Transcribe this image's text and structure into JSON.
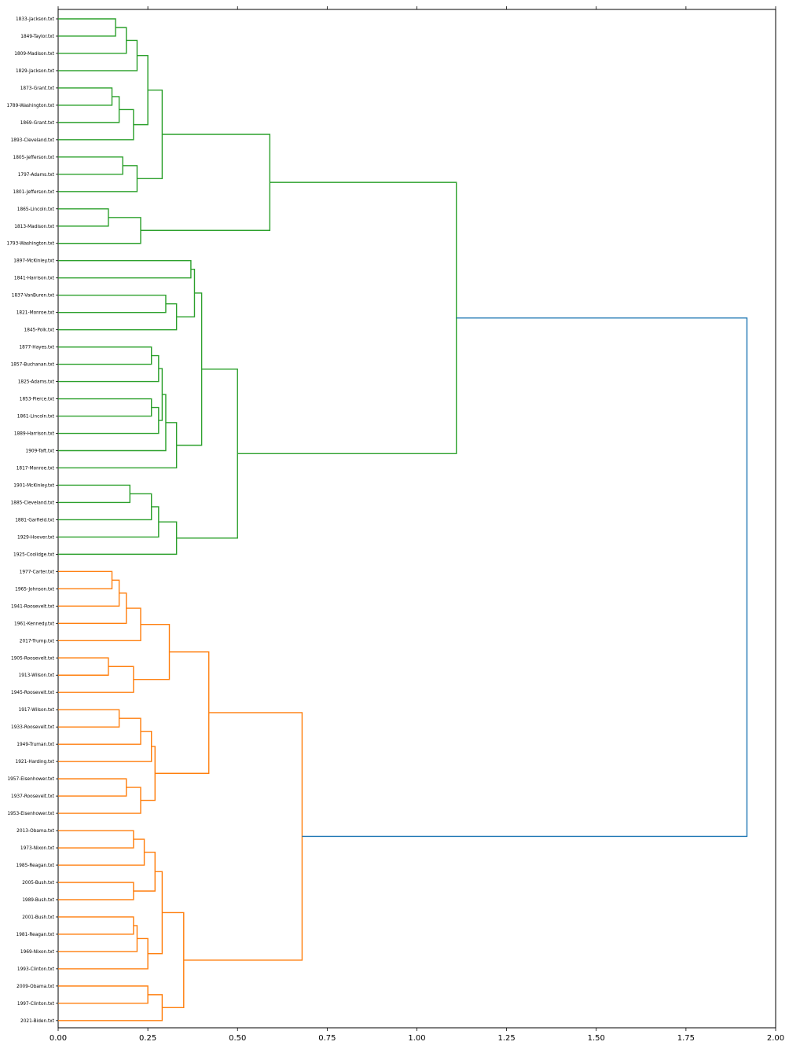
{
  "chart_data": {
    "type": "dendrogram",
    "orientation": "left",
    "xlim": [
      0.0,
      2.0
    ],
    "x_ticks": [
      "0.00",
      "0.25",
      "0.50",
      "0.75",
      "1.00",
      "1.25",
      "1.50",
      "1.75",
      "2.00"
    ],
    "colors": {
      "cluster_a": "#2ca02c",
      "cluster_b": "#ff7f0e",
      "above_threshold": "#1f77b4"
    },
    "leaves": [
      "1833-Jackson.txt",
      "1849-Taylor.txt",
      "1809-Madison.txt",
      "1829-Jackson.txt",
      "1873-Grant.txt",
      "1789-Washington.txt",
      "1869-Grant.txt",
      "1893-Cleveland.txt",
      "1805-Jefferson.txt",
      "1797-Adams.txt",
      "1801-Jefferson.txt",
      "1865-Lincoln.txt",
      "1813-Madison.txt",
      "1793-Washington.txt",
      "1897-McKinley.txt",
      "1841-Harrison.txt",
      "1837-VanBuren.txt",
      "1821-Monroe.txt",
      "1845-Polk.txt",
      "1877-Hayes.txt",
      "1857-Buchanan.txt",
      "1825-Adams.txt",
      "1853-Pierce.txt",
      "1861-Lincoln.txt",
      "1889-Harrison.txt",
      "1909-Taft.txt",
      "1817-Monroe.txt",
      "1901-McKinley.txt",
      "1885-Cleveland.txt",
      "1881-Garfield.txt",
      "1929-Hoover.txt",
      "1925-Coolidge.txt",
      "1977-Carter.txt",
      "1965-Johnson.txt",
      "1941-Roosevelt.txt",
      "1961-Kennedy.txt",
      "2017-Trump.txt",
      "1905-Roosevelt.txt",
      "1913-Wilson.txt",
      "1945-Roosevelt.txt",
      "1917-Wilson.txt",
      "1933-Roosevelt.txt",
      "1949-Truman.txt",
      "1921-Harding.txt",
      "1957-Eisenhower.txt",
      "1937-Roosevelt.txt",
      "1953-Eisenhower.txt",
      "2013-Obama.txt",
      "1973-Nixon.txt",
      "1985-Reagan.txt",
      "2005-Bush.txt",
      "1989-Bush.txt",
      "2001-Bush.txt",
      "1981-Reagan.txt",
      "1969-Nixon.txt",
      "1993-Clinton.txt",
      "2009-Obama.txt",
      "1997-Clinton.txt",
      "2021-Biden.txt"
    ],
    "merges": [
      {
        "id": "A1",
        "children": [
          "1833-Jackson.txt",
          "1849-Taylor.txt"
        ],
        "height": 0.16,
        "cluster": "cluster_a"
      },
      {
        "id": "A2",
        "children": [
          "A1",
          "1809-Madison.txt"
        ],
        "height": 0.19,
        "cluster": "cluster_a"
      },
      {
        "id": "A3",
        "children": [
          "A2",
          "1829-Jackson.txt"
        ],
        "height": 0.22,
        "cluster": "cluster_a"
      },
      {
        "id": "A4",
        "children": [
          "1873-Grant.txt",
          "1789-Washington.txt"
        ],
        "height": 0.15,
        "cluster": "cluster_a"
      },
      {
        "id": "A5",
        "children": [
          "A4",
          "1869-Grant.txt"
        ],
        "height": 0.17,
        "cluster": "cluster_a"
      },
      {
        "id": "A6",
        "children": [
          "A5",
          "1893-Cleveland.txt"
        ],
        "height": 0.21,
        "cluster": "cluster_a"
      },
      {
        "id": "A7",
        "children": [
          "A3",
          "A6"
        ],
        "height": 0.25,
        "cluster": "cluster_a"
      },
      {
        "id": "A8",
        "children": [
          "1805-Jefferson.txt",
          "1797-Adams.txt"
        ],
        "height": 0.18,
        "cluster": "cluster_a"
      },
      {
        "id": "A9",
        "children": [
          "A8",
          "1801-Jefferson.txt"
        ],
        "height": 0.22,
        "cluster": "cluster_a"
      },
      {
        "id": "A10",
        "children": [
          "A7",
          "A9"
        ],
        "height": 0.29,
        "cluster": "cluster_a"
      },
      {
        "id": "A11",
        "children": [
          "1865-Lincoln.txt",
          "1813-Madison.txt"
        ],
        "height": 0.14,
        "cluster": "cluster_a"
      },
      {
        "id": "A12",
        "children": [
          "A11",
          "1793-Washington.txt"
        ],
        "height": 0.23,
        "cluster": "cluster_a"
      },
      {
        "id": "A13",
        "children": [
          "A10",
          "A12"
        ],
        "height": 0.59,
        "cluster": "cluster_a"
      },
      {
        "id": "B1",
        "children": [
          "1897-McKinley.txt",
          "1841-Harrison.txt"
        ],
        "height": 0.37,
        "cluster": "cluster_a"
      },
      {
        "id": "B2",
        "children": [
          "1837-VanBuren.txt",
          "1821-Monroe.txt"
        ],
        "height": 0.3,
        "cluster": "cluster_a"
      },
      {
        "id": "B3",
        "children": [
          "B2",
          "1845-Polk.txt"
        ],
        "height": 0.33,
        "cluster": "cluster_a"
      },
      {
        "id": "B4",
        "children": [
          "B1",
          "B3"
        ],
        "height": 0.38,
        "cluster": "cluster_a"
      },
      {
        "id": "B5",
        "children": [
          "1877-Hayes.txt",
          "1857-Buchanan.txt"
        ],
        "height": 0.26,
        "cluster": "cluster_a"
      },
      {
        "id": "B6",
        "children": [
          "B5",
          "1825-Adams.txt"
        ],
        "height": 0.28,
        "cluster": "cluster_a"
      },
      {
        "id": "B7",
        "children": [
          "1853-Pierce.txt",
          "1861-Lincoln.txt"
        ],
        "height": 0.26,
        "cluster": "cluster_a"
      },
      {
        "id": "B8",
        "children": [
          "B7",
          "1889-Harrison.txt"
        ],
        "height": 0.28,
        "cluster": "cluster_a"
      },
      {
        "id": "B9",
        "children": [
          "B6",
          "B8"
        ],
        "height": 0.29,
        "cluster": "cluster_a"
      },
      {
        "id": "B10",
        "children": [
          "B9",
          "1909-Taft.txt"
        ],
        "height": 0.3,
        "cluster": "cluster_a"
      },
      {
        "id": "B11",
        "children": [
          "B10",
          "1817-Monroe.txt"
        ],
        "height": 0.33,
        "cluster": "cluster_a"
      },
      {
        "id": "B12",
        "children": [
          "B4",
          "B11"
        ],
        "height": 0.4,
        "cluster": "cluster_a"
      },
      {
        "id": "B13",
        "children": [
          "1901-McKinley.txt",
          "1885-Cleveland.txt"
        ],
        "height": 0.2,
        "cluster": "cluster_a"
      },
      {
        "id": "B14",
        "children": [
          "B13",
          "1881-Garfield.txt"
        ],
        "height": 0.26,
        "cluster": "cluster_a"
      },
      {
        "id": "B15",
        "children": [
          "B14",
          "1929-Hoover.txt"
        ],
        "height": 0.28,
        "cluster": "cluster_a"
      },
      {
        "id": "B16",
        "children": [
          "B15",
          "1925-Coolidge.txt"
        ],
        "height": 0.33,
        "cluster": "cluster_a"
      },
      {
        "id": "B17",
        "children": [
          "B12",
          "B16"
        ],
        "height": 0.5,
        "cluster": "cluster_a"
      },
      {
        "id": "G1",
        "children": [
          "A13",
          "B17"
        ],
        "height": 1.11,
        "cluster": "cluster_a"
      },
      {
        "id": "C1",
        "children": [
          "1977-Carter.txt",
          "1965-Johnson.txt"
        ],
        "height": 0.15,
        "cluster": "cluster_b"
      },
      {
        "id": "C2",
        "children": [
          "C1",
          "1941-Roosevelt.txt"
        ],
        "height": 0.17,
        "cluster": "cluster_b"
      },
      {
        "id": "C3",
        "children": [
          "C2",
          "1961-Kennedy.txt"
        ],
        "height": 0.19,
        "cluster": "cluster_b"
      },
      {
        "id": "C4",
        "children": [
          "C3",
          "2017-Trump.txt"
        ],
        "height": 0.23,
        "cluster": "cluster_b"
      },
      {
        "id": "C5",
        "children": [
          "1905-Roosevelt.txt",
          "1913-Wilson.txt"
        ],
        "height": 0.14,
        "cluster": "cluster_b"
      },
      {
        "id": "C6",
        "children": [
          "C5",
          "1945-Roosevelt.txt"
        ],
        "height": 0.21,
        "cluster": "cluster_b"
      },
      {
        "id": "C7",
        "children": [
          "C4",
          "C6"
        ],
        "height": 0.31,
        "cluster": "cluster_b"
      },
      {
        "id": "C8",
        "children": [
          "1917-Wilson.txt",
          "1933-Roosevelt.txt"
        ],
        "height": 0.17,
        "cluster": "cluster_b"
      },
      {
        "id": "C9",
        "children": [
          "C8",
          "1949-Truman.txt"
        ],
        "height": 0.23,
        "cluster": "cluster_b"
      },
      {
        "id": "C10",
        "children": [
          "C9",
          "1921-Harding.txt"
        ],
        "height": 0.26,
        "cluster": "cluster_b"
      },
      {
        "id": "C11",
        "children": [
          "1957-Eisenhower.txt",
          "1937-Roosevelt.txt"
        ],
        "height": 0.19,
        "cluster": "cluster_b"
      },
      {
        "id": "C12",
        "children": [
          "C11",
          "1953-Eisenhower.txt"
        ],
        "height": 0.23,
        "cluster": "cluster_b"
      },
      {
        "id": "C13",
        "children": [
          "C10",
          "C12"
        ],
        "height": 0.27,
        "cluster": "cluster_b"
      },
      {
        "id": "C14",
        "children": [
          "C7",
          "C13"
        ],
        "height": 0.42,
        "cluster": "cluster_b"
      },
      {
        "id": "D1",
        "children": [
          "2013-Obama.txt",
          "1973-Nixon.txt"
        ],
        "height": 0.21,
        "cluster": "cluster_b"
      },
      {
        "id": "D2",
        "children": [
          "D1",
          "1985-Reagan.txt"
        ],
        "height": 0.24,
        "cluster": "cluster_b"
      },
      {
        "id": "D3",
        "children": [
          "2005-Bush.txt",
          "1989-Bush.txt"
        ],
        "height": 0.21,
        "cluster": "cluster_b"
      },
      {
        "id": "D4",
        "children": [
          "D2",
          "D3"
        ],
        "height": 0.27,
        "cluster": "cluster_b"
      },
      {
        "id": "D5",
        "children": [
          "2001-Bush.txt",
          "1981-Reagan.txt"
        ],
        "height": 0.21,
        "cluster": "cluster_b"
      },
      {
        "id": "D6",
        "children": [
          "D5",
          "1969-Nixon.txt"
        ],
        "height": 0.22,
        "cluster": "cluster_b"
      },
      {
        "id": "D7",
        "children": [
          "D6",
          "1993-Clinton.txt"
        ],
        "height": 0.25,
        "cluster": "cluster_b"
      },
      {
        "id": "D8",
        "children": [
          "D4",
          "D7"
        ],
        "height": 0.29,
        "cluster": "cluster_b"
      },
      {
        "id": "D9",
        "children": [
          "2009-Obama.txt",
          "1997-Clinton.txt"
        ],
        "height": 0.25,
        "cluster": "cluster_b"
      },
      {
        "id": "D10",
        "children": [
          "D9",
          "2021-Biden.txt"
        ],
        "height": 0.29,
        "cluster": "cluster_b"
      },
      {
        "id": "D11",
        "children": [
          "D8",
          "D10"
        ],
        "height": 0.35,
        "cluster": "cluster_b"
      },
      {
        "id": "G2",
        "children": [
          "C14",
          "D11"
        ],
        "height": 0.68,
        "cluster": "cluster_b"
      },
      {
        "id": "ROOT",
        "children": [
          "G1",
          "G2"
        ],
        "height": 1.92,
        "cluster": "above_threshold"
      }
    ]
  }
}
